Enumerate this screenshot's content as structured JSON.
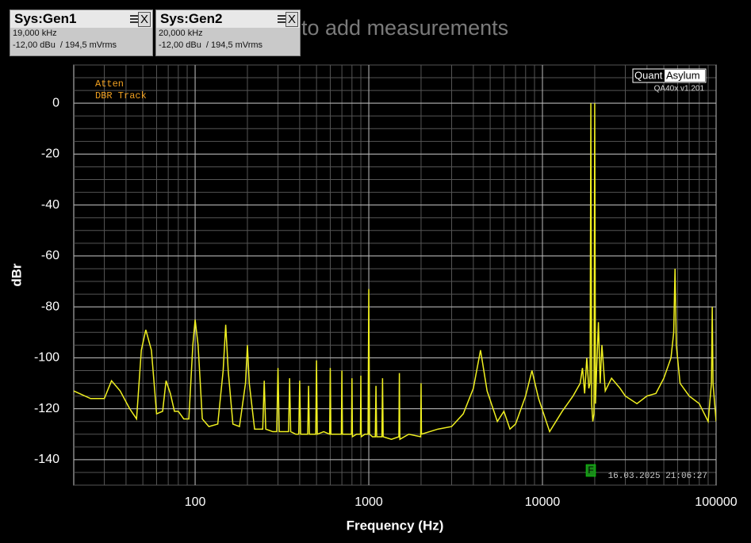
{
  "panels": [
    {
      "title": "Sys:Gen1",
      "frequency": "19,000 kHz",
      "level": "-12,00 dBu  / 194,5 mVrms",
      "close": "X"
    },
    {
      "title": "Sys:Gen2",
      "frequency": "20,000 kHz",
      "level": "-12,00 dBu  / 194,5 mVrms",
      "close": "X"
    }
  ],
  "hint": "to add measurements",
  "logo": {
    "left": "Quant",
    "right": "Asylum",
    "version": "QA40x v1.201"
  },
  "annotations": [
    "Atten",
    "DBR Track"
  ],
  "marker": "F",
  "timestamp": "16.03.2025 21:06:27",
  "chart_data": {
    "type": "line",
    "xlabel": "Frequency (Hz)",
    "ylabel": "dBr",
    "log_x": true,
    "grid": true,
    "minor_grid": true,
    "xlim": [
      20,
      100000
    ],
    "xticks": [
      100,
      1000,
      10000,
      100000
    ],
    "ylim": [
      -150,
      15
    ],
    "yticks": [
      0,
      -20,
      -40,
      -60,
      -80,
      -100,
      -120,
      -140
    ],
    "series": [
      {
        "color": "#f0f020",
        "x": [
          20,
          25,
          30,
          33,
          37,
          42,
          46,
          49,
          52,
          56,
          60,
          65,
          68,
          72,
          76,
          80,
          86,
          92,
          97,
          100,
          104,
          110,
          120,
          135,
          145,
          150,
          155,
          165,
          180,
          195,
          200,
          205,
          220,
          245,
          250,
          255,
          280,
          295,
          300,
          305,
          330,
          345,
          350,
          355,
          380,
          395,
          400,
          405,
          430,
          445,
          450,
          455,
          480,
          495,
          500,
          505,
          550,
          595,
          600,
          605,
          650,
          695,
          700,
          705,
          750,
          795,
          800,
          805,
          850,
          895,
          900,
          905,
          950,
          990,
          1000,
          1010,
          1050,
          1090,
          1100,
          1110,
          1150,
          1190,
          1200,
          1210,
          1350,
          1490,
          1500,
          1510,
          1700,
          1990,
          2000,
          2010,
          2500,
          3000,
          3500,
          4000,
          4400,
          4800,
          5500,
          6000,
          6500,
          7000,
          8000,
          8700,
          9500,
          11000,
          13000,
          15000,
          16500,
          17000,
          17500,
          18000,
          18500,
          18800,
          19000,
          19200,
          19500,
          19800,
          20000,
          20200,
          20500,
          21000,
          21500,
          22000,
          23000,
          25000,
          28000,
          30000,
          35000,
          40000,
          45000,
          50000,
          55000,
          57000,
          58000,
          59000,
          62000,
          70000,
          80000,
          90000,
          94000,
          95000,
          96000,
          100000
        ],
        "values": [
          -113,
          -116,
          -116,
          -109,
          -113,
          -120,
          -124,
          -97,
          -89,
          -97,
          -122,
          -121,
          -109,
          -114,
          -121,
          -121,
          -124,
          -124,
          -95,
          -85,
          -95,
          -124,
          -127,
          -126,
          -105,
          -87,
          -105,
          -126,
          -127,
          -110,
          -95,
          -110,
          -128,
          -128,
          -109,
          -128,
          -129,
          -129,
          -104,
          -129,
          -129,
          -129,
          -108,
          -129,
          -130,
          -130,
          -109,
          -130,
          -130,
          -130,
          -111,
          -130,
          -130,
          -130,
          -101,
          -130,
          -129,
          -130,
          -104,
          -130,
          -130,
          -130,
          -105,
          -130,
          -130,
          -130,
          -108,
          -131,
          -130,
          -130,
          -107,
          -131,
          -130,
          -130,
          -73,
          -130,
          -131,
          -131,
          -111,
          -131,
          -131,
          -131,
          -108,
          -131,
          -132,
          -131,
          -106,
          -132,
          -130,
          -131,
          -110,
          -130,
          -128,
          -127,
          -122,
          -112,
          -97,
          -113,
          -125,
          -121,
          -128,
          -126,
          -115,
          -105,
          -116,
          -129,
          -121,
          -115,
          -110,
          -104,
          -114,
          -100,
          -112,
          -110,
          0,
          -118,
          -125,
          -122,
          0,
          -118,
          -105,
          -86,
          -110,
          -95,
          -113,
          -108,
          -112,
          -115,
          -118,
          -115,
          -114,
          -108,
          -100,
          -90,
          -65,
          -95,
          -110,
          -115,
          -118,
          -125,
          -110,
          -80,
          -110,
          -125
        ]
      }
    ]
  }
}
